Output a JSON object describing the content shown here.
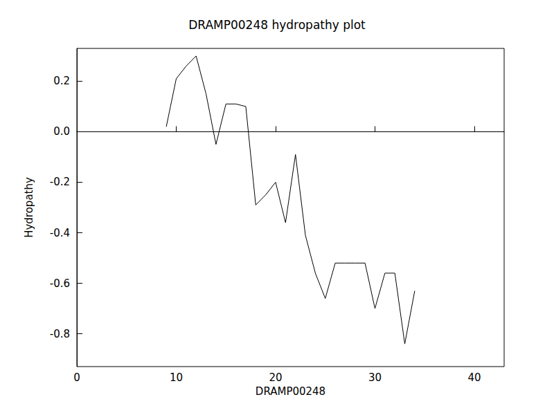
{
  "chart_data": {
    "type": "line",
    "title": "DRAMP00248 hydropathy plot",
    "x_label": "DRAMP00248",
    "y_label": "Hydropathy",
    "x": [
      9,
      10,
      11,
      12,
      13,
      14,
      15,
      16,
      17,
      18,
      19,
      20,
      21,
      22,
      23,
      24,
      25,
      26,
      27,
      28,
      29,
      30,
      31,
      32,
      33,
      34
    ],
    "values": [
      0.02,
      0.21,
      0.26,
      0.3,
      0.15,
      -0.05,
      0.11,
      0.11,
      0.1,
      -0.29,
      -0.25,
      -0.2,
      -0.36,
      -0.09,
      -0.41,
      -0.56,
      -0.66,
      -0.52,
      -0.52,
      -0.52,
      -0.52,
      -0.7,
      -0.56,
      -0.56,
      -0.84,
      -0.63
    ],
    "color": "#000000",
    "xlim": [
      0,
      43
    ],
    "xticks": [
      0,
      10,
      20,
      30,
      40
    ],
    "ylim": [
      -0.93,
      0.33
    ],
    "yticks": [
      -0.8,
      -0.6,
      -0.4,
      -0.2,
      {
        "value": 0,
        "label": "0.0"
      },
      0.2
    ],
    "grid": false
  }
}
